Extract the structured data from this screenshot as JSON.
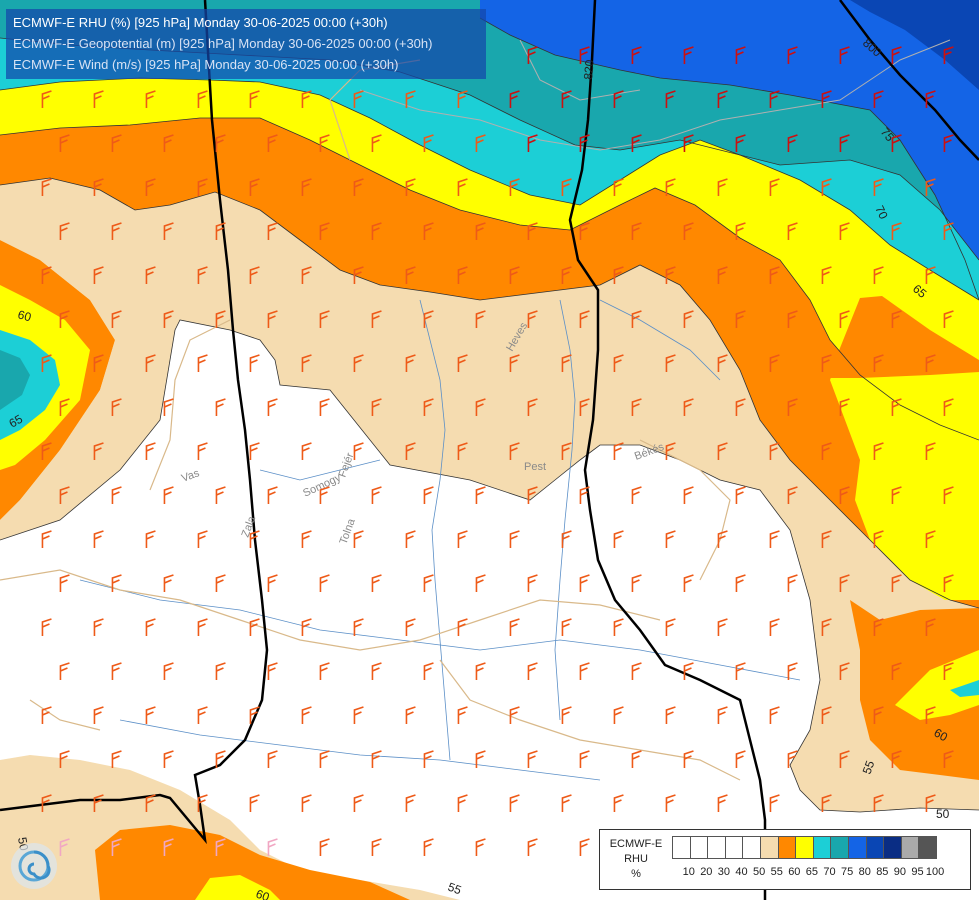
{
  "header": {
    "line1": "ECMWF-E RHU (%) [925 hPa] Monday 30-06-2025 00:00 (+30h)",
    "line2": "ECMWF-E Geopotential (m) [925 hPa] Monday 30-06-2025 00:00 (+30h)",
    "line3": "ECMWF-E Wind (m/s) [925 hPa] Monday 30-06-2025 00:00 (+30h)"
  },
  "legend": {
    "title_line1": "ECMWF-E",
    "title_line2": "RHU",
    "unit": "%",
    "colors": [
      "#ffffff",
      "#ffffff",
      "#ffffff",
      "#ffffff",
      "#ffffff",
      "#f5dcb0",
      "#ff8800",
      "#ffff00",
      "#1ccfd6",
      "#19a7ad",
      "#1464e6",
      "#0a46b4",
      "#0a2d84",
      "#aaaaaa",
      "#555555"
    ],
    "ticks": [
      "10",
      "20",
      "30",
      "40",
      "50",
      "55",
      "60",
      "65",
      "70",
      "75",
      "80",
      "85",
      "90",
      "95",
      "100"
    ]
  },
  "contour_labels": {
    "geo_800": "800",
    "geo_820": "820",
    "rh_75": "75",
    "rh_70": "70",
    "rh_65_right": "65",
    "rh_60_left": "60",
    "rh_65_left": "65",
    "rh_60_right": "60",
    "rh_55_right": "55",
    "rh_50_right": "50",
    "rh_50_bottom": "50",
    "rh_60_bottom": "60",
    "rh_55_bottom": "55"
  },
  "places": {
    "heves": "Heves",
    "pest": "Pest",
    "bekes": "Békés",
    "vas": "Vas",
    "somogy": "Somogy",
    "fejer": "Fejér",
    "zala": "Zala",
    "tolna": "Tolna"
  },
  "logo": {
    "name": "ecmwf-logo-icon"
  }
}
